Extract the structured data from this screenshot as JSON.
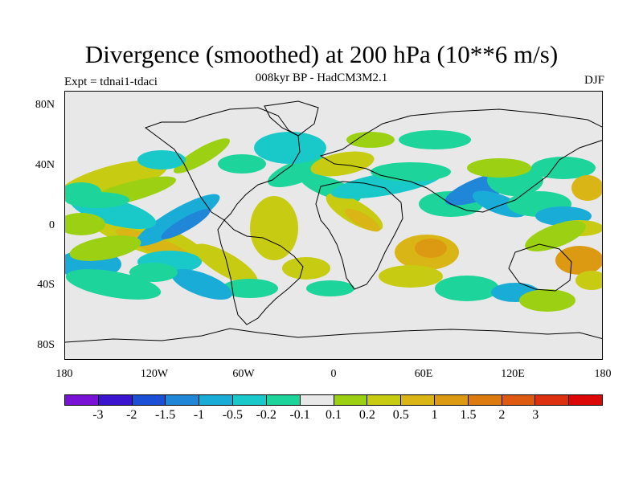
{
  "title": "Divergence (smoothed) at 200 hPa (10**6 m/s)",
  "subtitle": "008kyr BP - HadCM3M2.1",
  "experiment": "Expt = tdnai1-tdaci",
  "season": "DJF",
  "lat_labels": [
    "80N",
    "40N",
    "0",
    "40S",
    "80S"
  ],
  "lon_labels": [
    "180",
    "120W",
    "60W",
    "0",
    "60E",
    "120E",
    "180"
  ],
  "colorbar": {
    "colors": [
      "#7a12d6",
      "#3b14d0",
      "#1a4fd6",
      "#1f86d8",
      "#19acd6",
      "#19c9c9",
      "#1dd49a",
      "#e8e8e8",
      "#9bd112",
      "#c7cc12",
      "#d9b515",
      "#dc9a12",
      "#de7b10",
      "#de5a10",
      "#dc3010",
      "#dc0808"
    ],
    "labels": [
      "-3",
      "-2",
      "-1.5",
      "-1",
      "-0.5",
      "-0.2",
      "-0.1",
      "0.1",
      "0.2",
      "0.5",
      "1",
      "1.5",
      "2",
      "3"
    ]
  }
}
